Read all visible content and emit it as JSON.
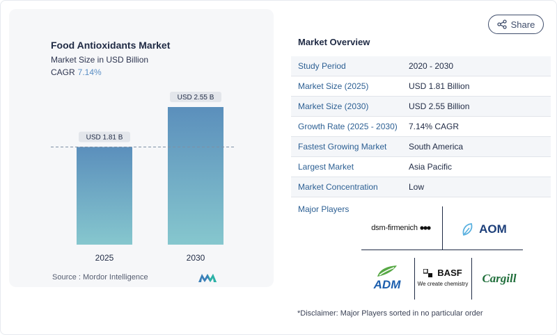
{
  "chart_card": {
    "title": "Food Antioxidants Market",
    "subtitle": "Market Size in USD Billion",
    "cagr_label": "CAGR",
    "cagr_value": "7.14%",
    "source": "Source :  Mordor Intelligence"
  },
  "chart_data": {
    "type": "bar",
    "categories": [
      "2025",
      "2030"
    ],
    "values": [
      1.81,
      2.55
    ],
    "data_labels": [
      "USD 1.81 B",
      "USD 2.55 B"
    ],
    "title": "Food Antioxidants Market",
    "subtitle": "Market Size in USD Billion",
    "ylim": [
      0,
      2.55
    ],
    "reference_line_value": 1.81,
    "colors": {
      "bar_top": "#5b8fbc",
      "bar_bottom": "#86c7ce"
    }
  },
  "share": {
    "label": "Share",
    "icon": "share-icon"
  },
  "overview": {
    "title": "Market Overview",
    "rows": [
      {
        "label": "Study Period",
        "value": "2020 - 2030"
      },
      {
        "label": "Market Size (2025)",
        "value": "USD 1.81 Billion"
      },
      {
        "label": "Market Size (2030)",
        "value": "USD 2.55 Billion"
      },
      {
        "label": "Growth Rate (2025 - 2030)",
        "value": "7.14% CAGR"
      },
      {
        "label": "Fastest Growing Market",
        "value": "South America"
      },
      {
        "label": "Largest Market",
        "value": "Asia Pacific"
      },
      {
        "label": "Market Concentration",
        "value": "Low"
      }
    ]
  },
  "players": {
    "title": "Major Players",
    "logos": {
      "dsm": "dsm-firmenich",
      "aom": "AOM",
      "adm": "ADM",
      "basf": "BASF",
      "basf_tagline": "We create chemistry",
      "cargill": "Cargill"
    }
  },
  "disclaimer": "*Disclaimer: Major Players sorted in no particular order"
}
